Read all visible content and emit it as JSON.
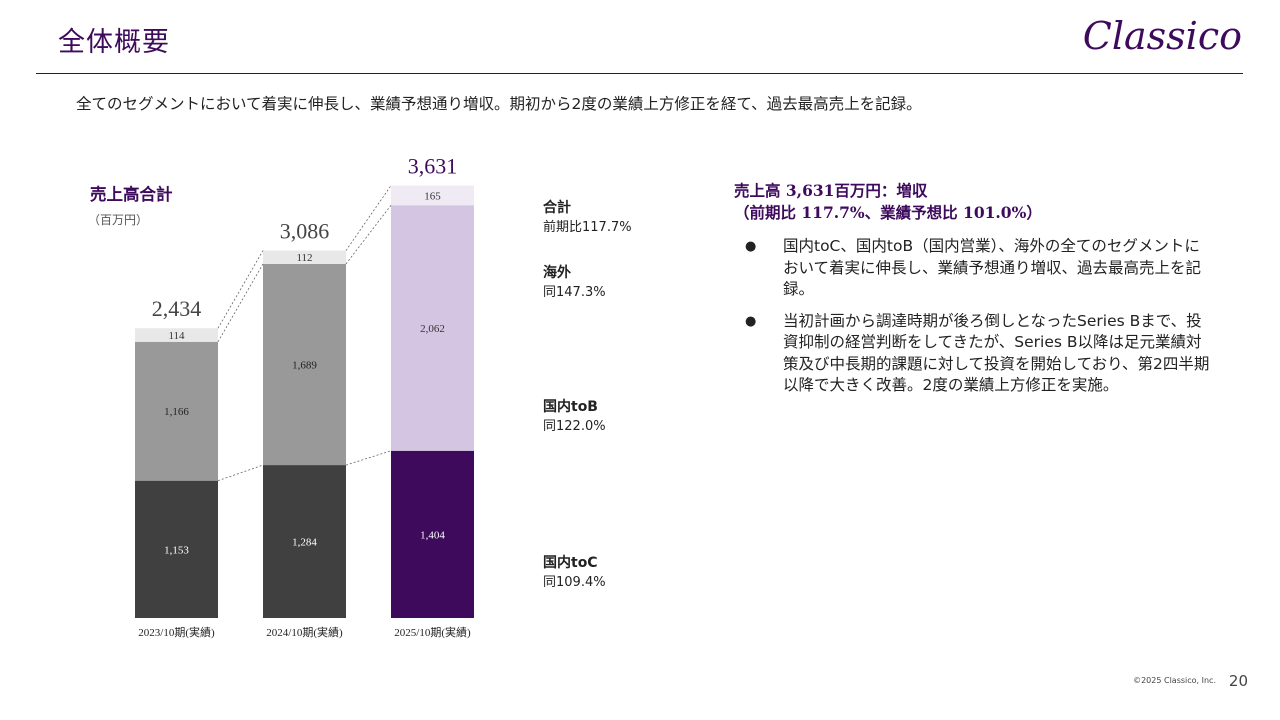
{
  "header": {
    "title": "全体概要",
    "logo_text": "Classico",
    "brand_color": "#3d0a5c"
  },
  "lead_text": "全てのセグメントにおいて着実に伸長し、業績予想通り増収。期初から2度の業績上方修正を経て、過去最高売上を記録。",
  "chart_data": {
    "type": "bar",
    "stacked": true,
    "title": "売上高合計",
    "unit": "（百万円）",
    "categories": [
      "2023/10期(実績)",
      "2024/10期(実績)",
      "2025/10期(実績)"
    ],
    "series": [
      {
        "name": "国内toC",
        "values": [
          1153,
          1284,
          1404
        ],
        "colors": [
          "#404040",
          "#404040",
          "#3d0a5c"
        ]
      },
      {
        "name": "国内toB",
        "values": [
          1166,
          1689,
          2062
        ],
        "colors": [
          "#999999",
          "#999999",
          "#d4c6e2"
        ]
      },
      {
        "name": "海外",
        "values": [
          114,
          112,
          165
        ],
        "colors": [
          "#e8e8e8",
          "#e8e8e8",
          "#efeaf3"
        ]
      }
    ],
    "value_labels": [
      [
        "1,153",
        "1,284",
        "1,404"
      ],
      [
        "1,166",
        "1,689",
        "2,062"
      ],
      [
        "114",
        "112",
        "165"
      ]
    ],
    "totals": [
      2434,
      3086,
      3631
    ],
    "total_labels": [
      "2,434",
      "3,086",
      "3,631"
    ],
    "total_colors": [
      "#444444",
      "#444444",
      "#3d0a5c"
    ],
    "ylim": [
      0,
      3800
    ],
    "grid": false,
    "legend_placement": "right"
  },
  "legend": [
    {
      "name": "合計",
      "note": "前期比117.7%"
    },
    {
      "name": "海外",
      "note": "同147.3%"
    },
    {
      "name": "国内toB",
      "note": "同122.0%"
    },
    {
      "name": "国内toC",
      "note": "同109.4%"
    }
  ],
  "summary": {
    "title_line1": "売上高 3,631百万円：増収",
    "title_line2": "（前期比 117.7%、業績予想比 101.0%）",
    "bullet_symbol": "●",
    "bullets": [
      "国内toC、国内toB（国内営業）、海外の全てのセグメントにおいて着実に伸長し、業績予想通り増収、過去最高売上を記録。",
      "当初計画から調達時期が後ろ倒しとなったSeries Bまで、投資抑制の経営判断をしてきたが、Series B以降は足元業績対策及び中長期的課題に対して投資を開始しており、第2四半期以降で大きく改善。2度の業績上方修正を実施。"
    ]
  },
  "footer": {
    "copyright": "©2025 Classico, Inc.",
    "page_number": "20"
  }
}
